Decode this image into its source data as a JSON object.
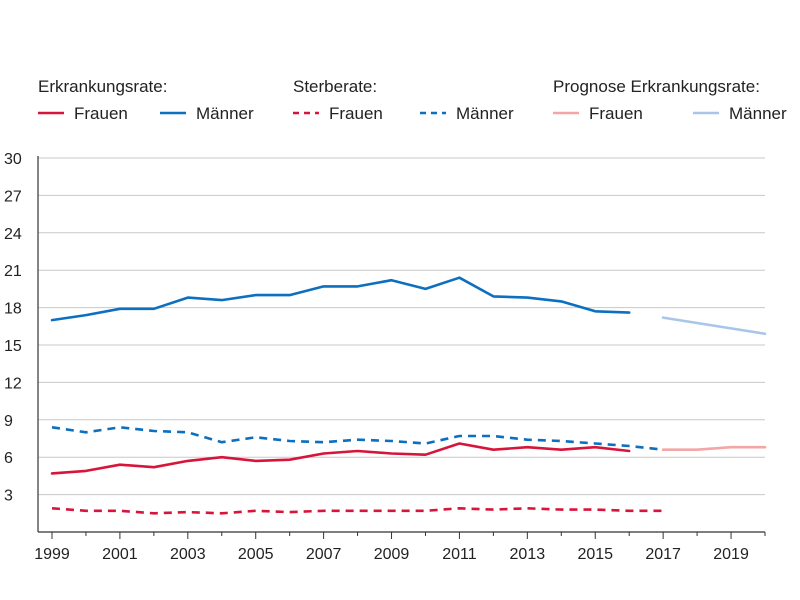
{
  "chart_data": {
    "type": "line",
    "title": "",
    "xlabel": "",
    "ylabel": "",
    "xlim": [
      1999,
      2020
    ],
    "ylim": [
      0,
      30
    ],
    "x_ticks": [
      "1999",
      "2001",
      "2003",
      "2005",
      "2007",
      "2009",
      "2011",
      "2013",
      "2015",
      "2017",
      "2019"
    ],
    "y_ticks": [
      "3",
      "6",
      "9",
      "12",
      "15",
      "18",
      "21",
      "24",
      "27",
      "30"
    ],
    "grid": "horizontal",
    "legend_position": "top",
    "legend_groups": [
      {
        "title": "Erkrankungsrate:",
        "entries": [
          {
            "label": "Frauen",
            "color": "#d7153a",
            "style": "solid"
          },
          {
            "label": "Männer",
            "color": "#0d6fbf",
            "style": "solid"
          }
        ]
      },
      {
        "title": "Sterberate:",
        "entries": [
          {
            "label": "Frauen",
            "color": "#d7153a",
            "style": "dashed"
          },
          {
            "label": "Männer",
            "color": "#0d6fbf",
            "style": "dashed"
          }
        ]
      },
      {
        "title": "Prognose Erkrankungsrate:",
        "entries": [
          {
            "label": "Frauen",
            "color": "#f2a6a6",
            "style": "solid"
          },
          {
            "label": "Männer",
            "color": "#a9c6e8",
            "style": "solid"
          }
        ]
      }
    ],
    "series": [
      {
        "key": "erk_m",
        "color": "#0d6fbf",
        "style": "solid",
        "x": [
          1999,
          2000,
          2001,
          2002,
          2003,
          2004,
          2005,
          2006,
          2007,
          2008,
          2009,
          2010,
          2011,
          2012,
          2013,
          2014,
          2015,
          2016
        ],
        "y": [
          17.0,
          17.4,
          17.9,
          17.9,
          18.8,
          18.6,
          19.0,
          19.0,
          19.7,
          19.7,
          20.2,
          19.5,
          20.4,
          18.9,
          18.8,
          18.5,
          17.7,
          17.6
        ]
      },
      {
        "key": "erk_f",
        "color": "#d7153a",
        "style": "solid",
        "x": [
          1999,
          2000,
          2001,
          2002,
          2003,
          2004,
          2005,
          2006,
          2007,
          2008,
          2009,
          2010,
          2011,
          2012,
          2013,
          2014,
          2015,
          2016
        ],
        "y": [
          4.7,
          4.9,
          5.4,
          5.2,
          5.7,
          6.0,
          5.7,
          5.8,
          6.3,
          6.5,
          6.3,
          6.2,
          7.1,
          6.6,
          6.8,
          6.6,
          6.8,
          6.5
        ]
      },
      {
        "key": "ster_m",
        "color": "#0d6fbf",
        "style": "dashed",
        "x": [
          1999,
          2000,
          2001,
          2002,
          2003,
          2004,
          2005,
          2006,
          2007,
          2008,
          2009,
          2010,
          2011,
          2012,
          2013,
          2014,
          2015,
          2016,
          2017
        ],
        "y": [
          8.4,
          8.0,
          8.4,
          8.1,
          8.0,
          7.2,
          7.6,
          7.3,
          7.2,
          7.4,
          7.3,
          7.1,
          7.7,
          7.7,
          7.4,
          7.3,
          7.1,
          6.9,
          6.6
        ]
      },
      {
        "key": "ster_f",
        "color": "#d7153a",
        "style": "dashed",
        "x": [
          1999,
          2000,
          2001,
          2002,
          2003,
          2004,
          2005,
          2006,
          2007,
          2008,
          2009,
          2010,
          2011,
          2012,
          2013,
          2014,
          2015,
          2016,
          2017
        ],
        "y": [
          1.9,
          1.7,
          1.7,
          1.5,
          1.6,
          1.5,
          1.7,
          1.6,
          1.7,
          1.7,
          1.7,
          1.7,
          1.9,
          1.8,
          1.9,
          1.8,
          1.8,
          1.7,
          1.7
        ]
      },
      {
        "key": "prog_m",
        "color": "#a9c6e8",
        "style": "solid",
        "x": [
          2017,
          2020
        ],
        "y": [
          17.2,
          15.9
        ]
      },
      {
        "key": "prog_f",
        "color": "#f2a6a6",
        "style": "solid",
        "x": [
          2017,
          2018,
          2019,
          2020
        ],
        "y": [
          6.6,
          6.6,
          6.8,
          6.8
        ]
      }
    ]
  }
}
